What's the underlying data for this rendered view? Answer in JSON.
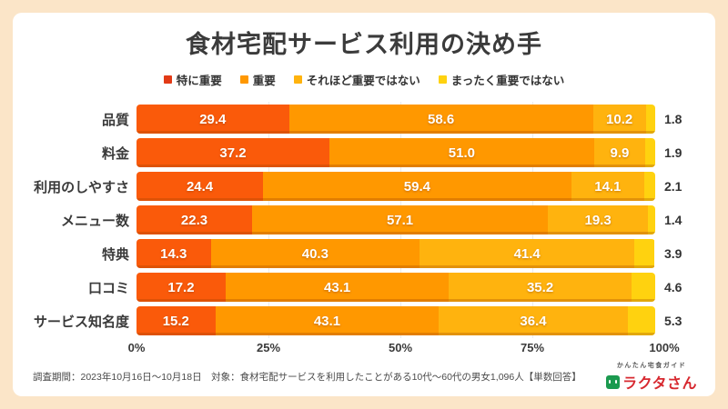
{
  "frame": {
    "background": "#FBE5C8",
    "card_background": "#FFFFFF"
  },
  "title": "食材宅配サービス利用の決め手",
  "legend": [
    {
      "label": "特に重要",
      "color": "#E23A16"
    },
    {
      "label": "重要",
      "color": "#FF9800"
    },
    {
      "label": "それほど重要ではない",
      "color": "#FFB30E"
    },
    {
      "label": "まったく重要ではない",
      "color": "#FFD20F"
    }
  ],
  "chart_data": {
    "type": "bar",
    "orientation": "horizontal",
    "stacked": true,
    "unit": "%",
    "title": "食材宅配サービス利用の決め手",
    "categories": [
      "品質",
      "料金",
      "利用のしやすさ",
      "メニュー数",
      "特典",
      "口コミ",
      "サービス知名度"
    ],
    "series": [
      {
        "name": "特に重要",
        "color": "#FA5A0A",
        "values": [
          29.4,
          37.2,
          24.4,
          22.3,
          14.3,
          17.2,
          15.2
        ]
      },
      {
        "name": "重要",
        "color": "#FF9800",
        "values": [
          58.6,
          51.0,
          59.4,
          57.1,
          40.3,
          43.1,
          43.1
        ]
      },
      {
        "name": "それほど重要ではない",
        "color": "#FFB30E",
        "values": [
          10.2,
          9.9,
          14.1,
          19.3,
          41.4,
          35.2,
          36.4
        ]
      },
      {
        "name": "まったく重要ではない",
        "color": "#FFD20F",
        "values": [
          1.8,
          1.9,
          2.1,
          1.4,
          3.9,
          4.6,
          5.3
        ]
      }
    ],
    "x_ticks": [
      {
        "label": "0%",
        "value": 0
      },
      {
        "label": "25%",
        "value": 25
      },
      {
        "label": "50%",
        "value": 50
      },
      {
        "label": "75%",
        "value": 75
      },
      {
        "label": "100%",
        "value": 100
      }
    ],
    "xlim": [
      0,
      100
    ],
    "grid": "faint vertical lines at 25/50/75",
    "legend_position": "top",
    "value_labels": "white bold inside segments; last series labeled in black outside right of bar"
  },
  "footer": {
    "note": "調査期間：2023年10月16日～10月18日　対象：食材宅配サービスを利用したことがある10代～60代の男女1,096人【単数回答】",
    "logo": {
      "tagline": "かんたん宅食ガイド",
      "name": "ラクタさん",
      "name_color": "#D7282F",
      "icon_color": "#1B9A4F"
    }
  }
}
